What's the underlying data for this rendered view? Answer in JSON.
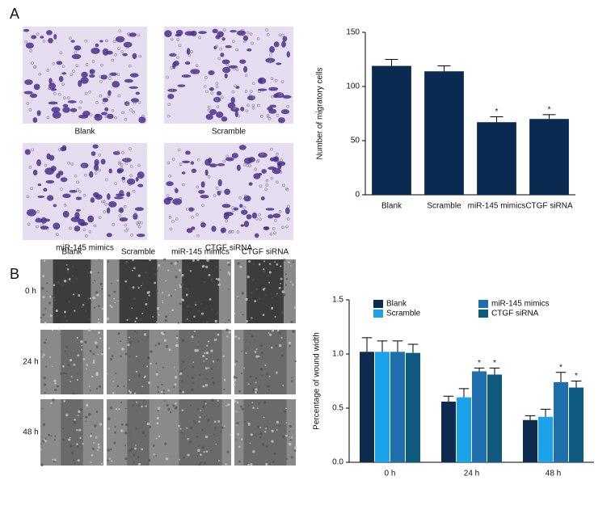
{
  "panel_a": {
    "label": "A",
    "image_captions": [
      "Blank",
      "Scramble",
      "miR-145 mimics",
      "CTGF siRNA"
    ]
  },
  "panel_b": {
    "label": "B",
    "column_headers": [
      "Blank",
      "Scramble",
      "miR-145 mimics",
      "CTGF siRNA"
    ],
    "row_labels": [
      "0 h",
      "24 h",
      "48 h"
    ]
  },
  "chart_data": [
    {
      "type": "bar",
      "y_label": "Number of migratory cells",
      "categories": [
        "Blank",
        "Scramble",
        "miR-145 mimics",
        "CTGF siRNA"
      ],
      "values": [
        119,
        114,
        67,
        70
      ],
      "errors": [
        6,
        5,
        5,
        4
      ],
      "annotations": [
        null,
        null,
        "*",
        "*"
      ],
      "color": "#0a2a52",
      "ylim": [
        0,
        150
      ],
      "yticks": [
        0,
        50,
        100,
        150
      ]
    },
    {
      "type": "bar",
      "y_label": "Percentage of wound width",
      "categories": [
        "0 h",
        "24 h",
        "48 h"
      ],
      "series": [
        {
          "name": "Blank",
          "color": "#0d2b4e",
          "values": [
            1.02,
            0.56,
            0.39
          ],
          "errors": [
            0.13,
            0.05,
            0.04
          ],
          "annotations": [
            null,
            null,
            null
          ]
        },
        {
          "name": "Scramble",
          "color": "#1aa3e8",
          "values": [
            1.02,
            0.6,
            0.42
          ],
          "errors": [
            0.1,
            0.08,
            0.07
          ],
          "annotations": [
            null,
            null,
            null
          ]
        },
        {
          "name": "miR-145 mimics",
          "color": "#1f6fae",
          "values": [
            1.02,
            0.84,
            0.74
          ],
          "errors": [
            0.1,
            0.03,
            0.09
          ],
          "annotations": [
            null,
            "*",
            "*"
          ]
        },
        {
          "name": "CTGF siRNA",
          "color": "#0e5a80",
          "values": [
            1.01,
            0.81,
            0.69
          ],
          "errors": [
            0.08,
            0.06,
            0.06
          ],
          "annotations": [
            null,
            "*",
            "*"
          ]
        }
      ],
      "ylim": [
        0,
        1.5
      ],
      "yticks": [
        {
          "value": 0,
          "label": "0.0"
        },
        0.5,
        {
          "value": 1,
          "label": "1.0"
        },
        1.5
      ]
    }
  ]
}
